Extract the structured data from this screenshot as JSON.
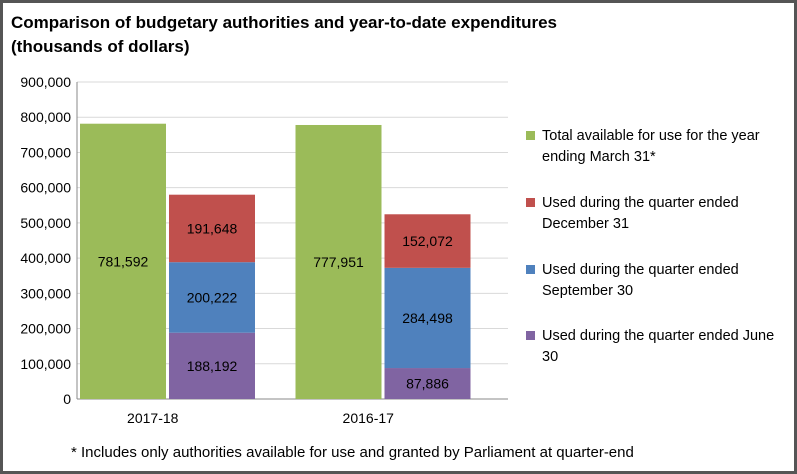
{
  "colors": {
    "total": "#9bbb59",
    "dec": "#c0504d",
    "sep": "#4f81bd",
    "jun": "#8064a2",
    "grid": "#d9d9d9",
    "axis": "#888888"
  },
  "chart_data": {
    "type": "bar",
    "title": "Comparison of  budgetary authorities and year-to-date expenditures",
    "subtitle": "(thousands of dollars)",
    "ylim": [
      0,
      900000
    ],
    "yticks": [
      0,
      100000,
      200000,
      300000,
      400000,
      500000,
      600000,
      700000,
      800000,
      900000
    ],
    "ytick_labels": [
      "0",
      "100,000",
      "200,000",
      "300,000",
      "400,000",
      "500,000",
      "600,000",
      "700,000",
      "800,000",
      "900,000"
    ],
    "grid": true,
    "legend_position": "right",
    "categories": [
      "2017-18",
      "2016-17"
    ],
    "groups": [
      {
        "category": "2017-18",
        "total": {
          "value": 781592,
          "label": "781,592"
        },
        "stack": [
          {
            "series": "jun",
            "value": 188192,
            "label": "188,192"
          },
          {
            "series": "sep",
            "value": 200222,
            "label": "200,222"
          },
          {
            "series": "dec",
            "value": 191648,
            "label": "191,648"
          }
        ]
      },
      {
        "category": "2016-17",
        "total": {
          "value": 777951,
          "label": "777,951"
        },
        "stack": [
          {
            "series": "jun",
            "value": 87886,
            "label": "87,886"
          },
          {
            "series": "sep",
            "value": 284498,
            "label": "284,498"
          },
          {
            "series": "dec",
            "value": 152072,
            "label": "152,072"
          }
        ]
      }
    ],
    "legend": [
      {
        "key": "total",
        "name": "Total available for use for the year ending  March 31*"
      },
      {
        "key": "dec",
        "name": "Used during the quarter ended December 31"
      },
      {
        "key": "sep",
        "name": "Used during the quarter ended September 30"
      },
      {
        "key": "jun",
        "name": "Used during the quarter ended June 30"
      }
    ],
    "footnote": "* Includes only authorities available for use and granted by Parliament at quarter-end"
  }
}
